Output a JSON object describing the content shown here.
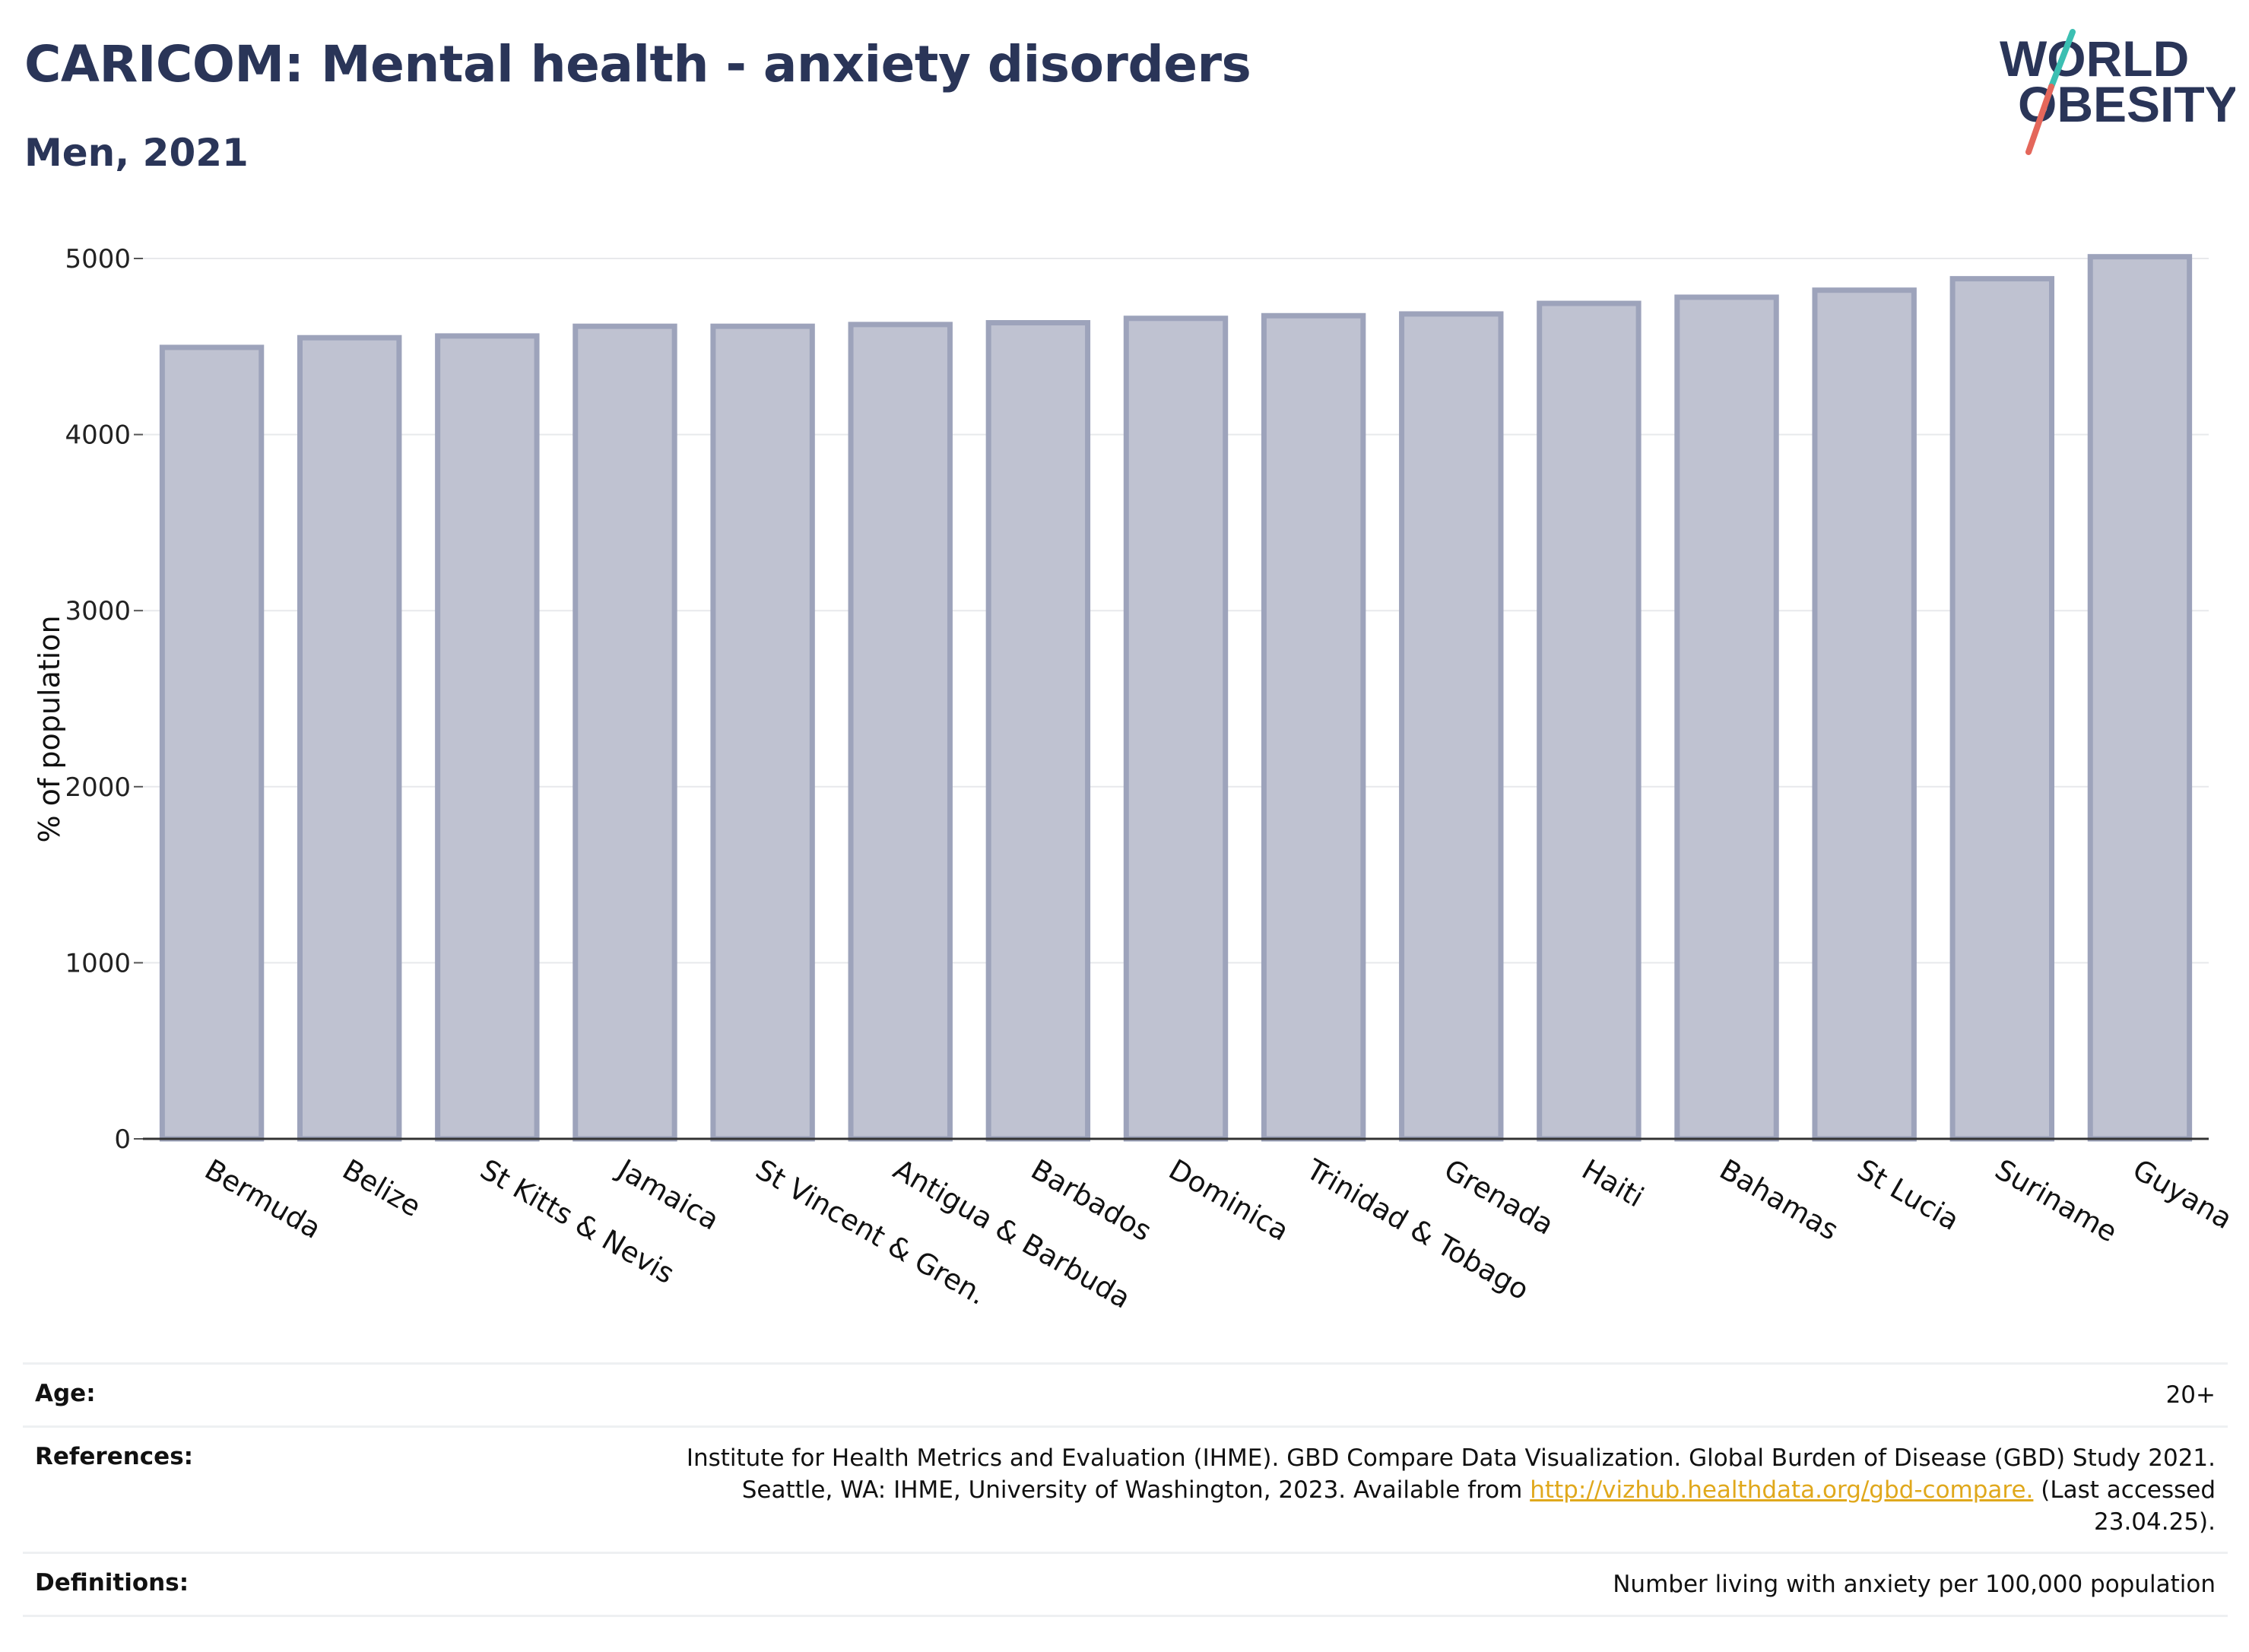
{
  "title": "CARICOM: Mental health - anxiety disorders",
  "subtitle": "Men, 2021",
  "logo": {
    "line1": "WORLD",
    "line2": "OBESITY",
    "colors": {
      "text": "#2a3558",
      "slash_top": "#3bbfb2",
      "slash_bottom": "#e4675b"
    }
  },
  "colors": {
    "bar_fill": "#bfc2d1",
    "bar_stroke": "#9da3bb",
    "gridline": "#e8e9ec",
    "axis": "#333333"
  },
  "chart_data": {
    "type": "bar",
    "categories": [
      "Bermuda",
      "Belize",
      "St Kitts & Nevis",
      "Jamaica",
      "St Vincent & Gren.",
      "Antigua & Barbuda",
      "Barbados",
      "Dominica",
      "Trinidad & Tobago",
      "Grenada",
      "Haiti",
      "Bahamas",
      "St Lucia",
      "Suriname",
      "Guyana"
    ],
    "values": [
      4495,
      4550,
      4560,
      4615,
      4615,
      4625,
      4635,
      4660,
      4675,
      4685,
      4745,
      4780,
      4820,
      4885,
      5010
    ],
    "ylabel": "% of population",
    "xlabel": "",
    "ylim": [
      0,
      5000
    ],
    "yticks": [
      0,
      1000,
      2000,
      3000,
      4000,
      5000
    ],
    "grid": true,
    "legend": "none"
  },
  "info": {
    "age_label": "Age:",
    "age_value": "20+",
    "references_label": "References:",
    "references_text": "Institute for Health Metrics and Evaluation (IHME). GBD Compare Data Visualization. Global Burden of Disease (GBD) Study 2021. Seattle, WA: IHME, University of Washington, 2023. Available from",
    "references_link": "http://vizhub.healthdata.org/gbd-compare.",
    "references_tail": "(Last accessed 23.04.25).",
    "definitions_label": "Definitions:",
    "definitions_value": "Number living with anxiety per 100,000 population"
  }
}
